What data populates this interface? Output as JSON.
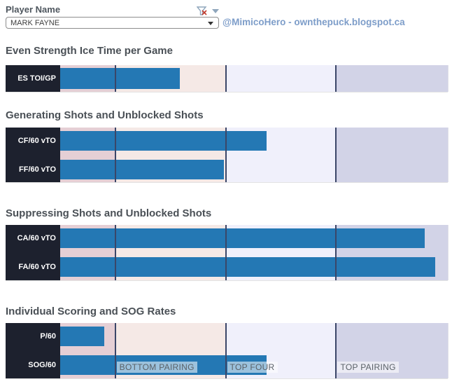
{
  "header": {
    "filter_label": "Player Name",
    "player_select": {
      "value": "MARK FAYNE"
    },
    "credit": "@MimicoHero - ownthepuck.blogspot.ca"
  },
  "colors": {
    "bar_blue": "#2478B4",
    "label_box_bg": "#1D212E",
    "label_text": "#FFFFFF",
    "ref_line": "#3B4668",
    "band_dusty_pink": "#E5CFD5",
    "band_light_pink": "#F5E9E6",
    "band_light_lavender": "#F0F0FB",
    "band_lavender": "#D2D3E7",
    "heading_text": "#4A5056",
    "credit_text": "#7D9DC9",
    "zone_label_text": "#5A6167"
  },
  "axis": {
    "note": "no numeric axis shown; values estimated as percent of plot width",
    "min_pct": 0,
    "max_pct": 100,
    "reference_lines_pct": [
      14.2,
      42.7,
      71.2
    ],
    "bands_pct": [
      [
        0,
        14.2
      ],
      [
        14.2,
        42.7
      ],
      [
        42.7,
        71.2
      ],
      [
        71.2,
        100
      ]
    ]
  },
  "zone_annotations": [
    {
      "label": "BOTTOM PAIRING",
      "at_pct": 14.2
    },
    {
      "label": "TOP FOUR",
      "at_pct": 42.7
    },
    {
      "label": "TOP PAIRING",
      "at_pct": 71.2
    }
  ],
  "chart_data": [
    {
      "type": "bar",
      "orientation": "horizontal",
      "title": "Even Strength Ice Time per Game",
      "categories": [
        "ES TOI/GP"
      ],
      "values_pct": [
        30.9
      ],
      "grid": false,
      "legend": false
    },
    {
      "type": "bar",
      "orientation": "horizontal",
      "title": "Generating Shots and Unblocked Shots",
      "categories": [
        "CF/60 vTO",
        "FF/60 vTO"
      ],
      "values_pct": [
        53.2,
        42.2
      ],
      "grid": false,
      "legend": false
    },
    {
      "type": "bar",
      "orientation": "horizontal",
      "title": "Suppressing Shots and Unblocked Shots",
      "categories": [
        "CA/60 vTO",
        "FA/60 vTO"
      ],
      "values_pct": [
        94.0,
        96.8
      ],
      "grid": false,
      "legend": false
    },
    {
      "type": "bar",
      "orientation": "horizontal",
      "title": "Individual Scoring and SOG Rates",
      "categories": [
        "P/60",
        "SOG/60"
      ],
      "values_pct": [
        11.4,
        53.2
      ],
      "grid": false,
      "legend": false,
      "shows_zone_annotations": true
    }
  ]
}
